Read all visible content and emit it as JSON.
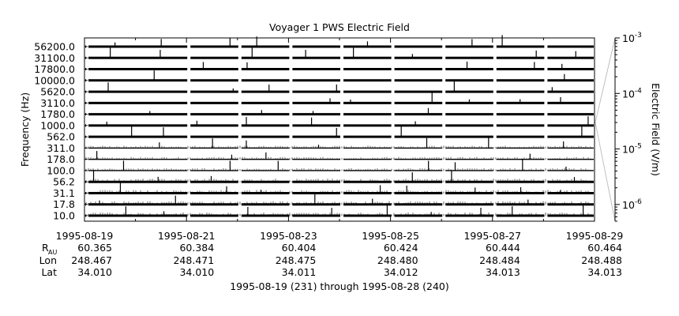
{
  "chart_data": {
    "type": "line",
    "title": "Voyager 1 PWS Electric Field",
    "ylabel": "Frequency (Hz)",
    "colorbar": {
      "label": "Electric Field (V/m)",
      "scale": "log",
      "range": [
        5e-07,
        0.001
      ],
      "ticks": [
        {
          "label": "10",
          "exp": "-3"
        },
        {
          "label": "10",
          "exp": "-4"
        },
        {
          "label": "10",
          "exp": "-5"
        },
        {
          "label": "10",
          "exp": "-6"
        }
      ]
    },
    "channels": [
      "56200.0",
      "31100.0",
      "17800.0",
      "10000.0",
      "5620.0",
      "3110.0",
      "1780.0",
      "1000.0",
      "562.0",
      "311.0",
      "178.0",
      "100.0",
      "56.2",
      "31.1",
      "17.8",
      "10.0"
    ],
    "channel_labels_shown": [
      "56200.0",
      "31100.0",
      "17800.0",
      "10000.0",
      "5620.0",
      "3110.0",
      "1780.0",
      "1000.0",
      "562.0",
      "311.0",
      "178.0",
      "100.0",
      "56.2",
      "31.1",
      "17.8",
      "10.0"
    ],
    "x_ticks": [
      "1995-08-19",
      "1995-08-21",
      "1995-08-23",
      "1995-08-25",
      "1995-08-27",
      "1995-08-29"
    ],
    "xlim": [
      "1995-08-19",
      "1995-08-29"
    ],
    "data_gaps": [
      "1995-08-19",
      "1995-08-21",
      "1995-08-22",
      "1995-08-23",
      "1995-08-24",
      "1995-08-25",
      "1995-08-26",
      "1995-08-27",
      "1995-08-28"
    ],
    "burst_days": [
      "1995-08-19",
      "1995-08-20",
      "1995-08-21",
      "1995-08-22",
      "1995-08-23",
      "1995-08-24",
      "1995-08-25",
      "1995-08-26",
      "1995-08-27",
      "1995-08-28"
    ],
    "ephemeris": {
      "row_labels": {
        "r": "R",
        "r_sub": "AU",
        "lon": "Lon",
        "lat": "Lat"
      },
      "columns": [
        {
          "r": "60.365",
          "lon": "248.467",
          "lat": "34.010"
        },
        {
          "r": "60.384",
          "lon": "248.471",
          "lat": "34.010"
        },
        {
          "r": "60.404",
          "lon": "248.475",
          "lat": "34.011"
        },
        {
          "r": "60.424",
          "lon": "248.480",
          "lat": "34.012"
        },
        {
          "r": "60.444",
          "lon": "248.484",
          "lat": "34.013"
        },
        {
          "r": "60.464",
          "lon": "248.488",
          "lat": "34.013"
        }
      ]
    },
    "footer": "1995-08-19 (231) through 1995-08-28 (240)"
  }
}
